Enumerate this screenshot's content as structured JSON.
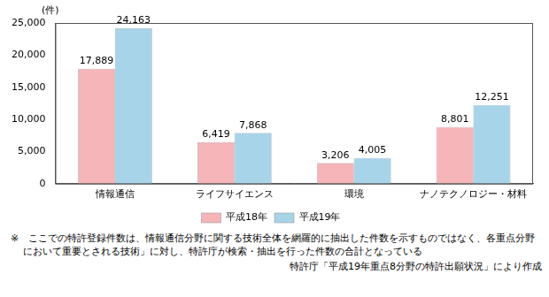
{
  "chart_data": {
    "type": "bar",
    "ylabel": "(件)",
    "categories": [
      "情報通信",
      "ライフサイエンス",
      "環境",
      "ナノテクノロジー・材料"
    ],
    "series": [
      {
        "name": "平成18年",
        "color": "#f5b5b9",
        "values": [
          17889,
          6419,
          3206,
          8801
        ],
        "value_labels": [
          "17,889",
          "6,419",
          "3,206",
          "8,801"
        ]
      },
      {
        "name": "平成19年",
        "color": "#a8d4ea",
        "values": [
          24163,
          7868,
          4005,
          12251
        ],
        "value_labels": [
          "24,163",
          "7,868",
          "4,005",
          "12,251"
        ]
      }
    ],
    "ylim": [
      0,
      25000
    ],
    "yticks": [
      0,
      {
        "value": 5000,
        "label": "5,000"
      },
      {
        "value": 10000,
        "label": "10,000"
      },
      {
        "value": 15000,
        "label": "15,000"
      },
      {
        "value": 20000,
        "label": "20,000"
      },
      {
        "value": 25000,
        "label": "25,000"
      }
    ],
    "grid": false,
    "legend": "bottom",
    "data_labels": true,
    "notes": [
      "※　ここでの特許登録件数は、情報通信分野に関する技術全体を網羅的に抽出した件数を示すものではなく、各重点分野において重要とされる技術」に対し、特許庁が検索・抽出を行った件数の合計となっている"
    ],
    "source": "特許庁「平成19年重点8分野の特許出願状況」により作成"
  }
}
